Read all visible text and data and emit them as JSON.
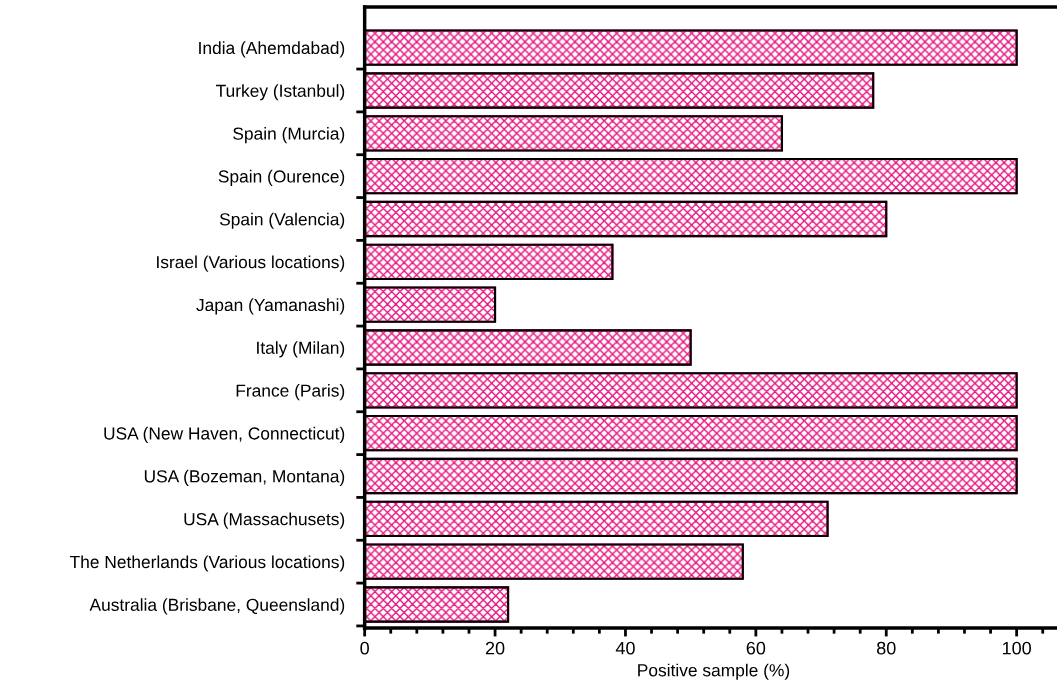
{
  "chart_data": {
    "type": "bar",
    "orientation": "horizontal",
    "xlabel": "Positive sample (%)",
    "categories": [
      "India (Ahemdabad)",
      "Turkey (Istanbul)",
      "Spain (Murcia)",
      "Spain (Ourence)",
      "Spain (Valencia)",
      "Israel (Various locations)",
      "Japan (Yamanashi)",
      "Italy (Milan)",
      "France (Paris)",
      "USA (New Haven, Connecticut)",
      "USA (Bozeman, Montana)",
      "USA (Massachusets)",
      "The Netherlands (Various locations)",
      "Australia (Brisbane, Queensland)"
    ],
    "values": [
      100,
      78,
      64,
      100,
      80,
      38,
      20,
      50,
      100,
      100,
      100,
      71,
      58,
      22
    ],
    "color": "#e8157f",
    "xlim": [
      0,
      107
    ],
    "xticks": [
      0,
      20,
      40,
      60,
      80,
      100
    ],
    "grid": false,
    "legend": false
  }
}
